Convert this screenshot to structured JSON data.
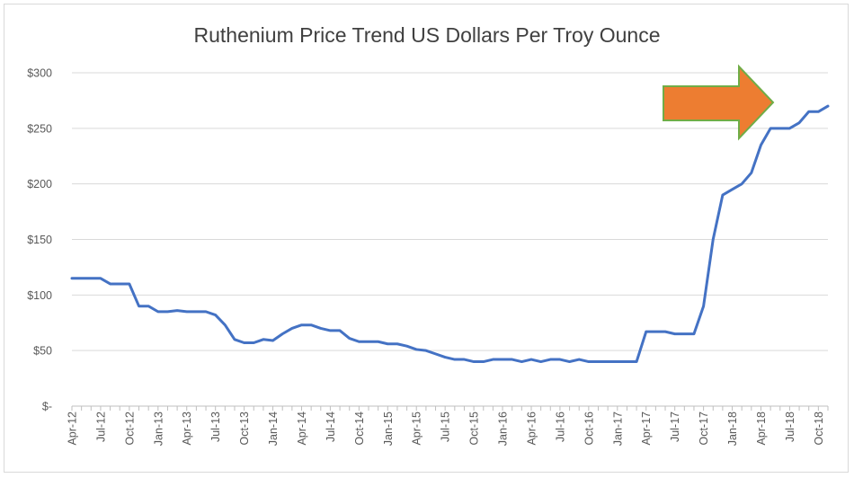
{
  "chart_data": {
    "type": "line",
    "title": "Ruthenium Price Trend US Dollars Per Troy Ounce",
    "xlabel": "",
    "ylabel": "",
    "ylim": [
      0,
      300
    ],
    "y_ticks": [
      0,
      50,
      100,
      150,
      200,
      250,
      300
    ],
    "y_tick_labels": [
      "$-",
      "$50",
      "$100",
      "$150",
      "$200",
      "$250",
      "$300"
    ],
    "x_tick_labels": [
      "Apr-12",
      "Jul-12",
      "Oct-12",
      "Jan-13",
      "Apr-13",
      "Jul-13",
      "Oct-13",
      "Jan-14",
      "Apr-14",
      "Jul-14",
      "Oct-14",
      "Jan-15",
      "Apr-15",
      "Jul-15",
      "Oct-15",
      "Jan-16",
      "Apr-16",
      "Jul-16",
      "Oct-16",
      "Jan-17",
      "Apr-17",
      "Jul-17",
      "Oct-17",
      "Jan-18",
      "Apr-18",
      "Jul-18",
      "Oct-18"
    ],
    "grid": true,
    "line_color": "#4472c4",
    "annotation": {
      "shape": "right-arrow",
      "fill": "#ed7d31",
      "stroke": "#70ad47"
    },
    "series": [
      {
        "x": [
          "Apr-12",
          "May-12",
          "Jun-12",
          "Jul-12",
          "Aug-12",
          "Sep-12",
          "Oct-12",
          "Nov-12",
          "Dec-12",
          "Jan-13",
          "Feb-13",
          "Mar-13",
          "Apr-13",
          "May-13",
          "Jun-13",
          "Jul-13",
          "Aug-13",
          "Sep-13",
          "Oct-13",
          "Nov-13",
          "Dec-13",
          "Jan-14",
          "Feb-14",
          "Mar-14",
          "Apr-14",
          "May-14",
          "Jun-14",
          "Jul-14",
          "Aug-14",
          "Sep-14",
          "Oct-14",
          "Nov-14",
          "Dec-14",
          "Jan-15",
          "Feb-15",
          "Mar-15",
          "Apr-15",
          "May-15",
          "Jun-15",
          "Jul-15",
          "Aug-15",
          "Sep-15",
          "Oct-15",
          "Nov-15",
          "Dec-15",
          "Jan-16",
          "Feb-16",
          "Mar-16",
          "Apr-16",
          "May-16",
          "Jun-16",
          "Jul-16",
          "Aug-16",
          "Sep-16",
          "Oct-16",
          "Nov-16",
          "Dec-16",
          "Jan-17",
          "Feb-17",
          "Mar-17",
          "Apr-17",
          "May-17",
          "Jun-17",
          "Jul-17",
          "Aug-17",
          "Sep-17",
          "Oct-17",
          "Nov-17",
          "Dec-17",
          "Jan-18",
          "Feb-18",
          "Mar-18",
          "Apr-18",
          "May-18",
          "Jun-18",
          "Jul-18",
          "Aug-18",
          "Sep-18",
          "Oct-18",
          "Nov-18"
        ],
        "values": [
          115,
          115,
          115,
          115,
          110,
          110,
          110,
          90,
          90,
          85,
          85,
          86,
          85,
          85,
          85,
          82,
          73,
          60,
          57,
          57,
          60,
          59,
          65,
          70,
          73,
          73,
          70,
          68,
          68,
          61,
          58,
          58,
          58,
          56,
          56,
          54,
          51,
          50,
          47,
          44,
          42,
          42,
          40,
          40,
          42,
          42,
          42,
          40,
          42,
          40,
          42,
          42,
          40,
          42,
          40,
          40,
          40,
          40,
          40,
          40,
          67,
          67,
          67,
          65,
          65,
          65,
          90,
          150,
          190,
          195,
          200,
          210,
          235,
          250,
          250,
          250,
          255,
          265,
          265,
          270
        ]
      }
    ]
  }
}
